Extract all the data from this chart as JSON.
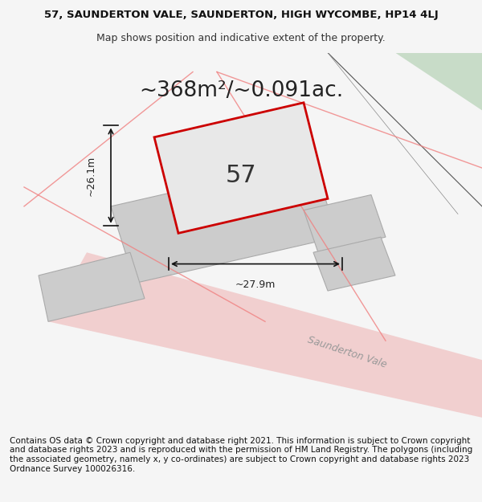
{
  "title_line1": "57, SAUNDERTON VALE, SAUNDERTON, HIGH WYCOMBE, HP14 4LJ",
  "title_line2": "Map shows position and indicative extent of the property.",
  "area_text": "~368m²/~0.091ac.",
  "label_57": "57",
  "label_width": "~27.9m",
  "label_height": "~26.1m",
  "road_label": "Saunderton Vale",
  "footer_text": "Contains OS data © Crown copyright and database right 2021. This information is subject to Crown copyright and database rights 2023 and is reproduced with the permission of HM Land Registry. The polygons (including the associated geometry, namely x, y co-ordinates) are subject to Crown copyright and database rights 2023 Ordnance Survey 100026316.",
  "bg_color": "#f5f5f5",
  "map_bg_color": "#ffffff",
  "plot_fill_color": "#d0d0d0",
  "plot_outline_color": "#cc0000",
  "road_color": "#f0c0c0",
  "green_color": "#c8dcc8",
  "title_fontsize": 9.5,
  "area_fontsize": 19,
  "label_fontsize": 22,
  "footer_fontsize": 7.5
}
